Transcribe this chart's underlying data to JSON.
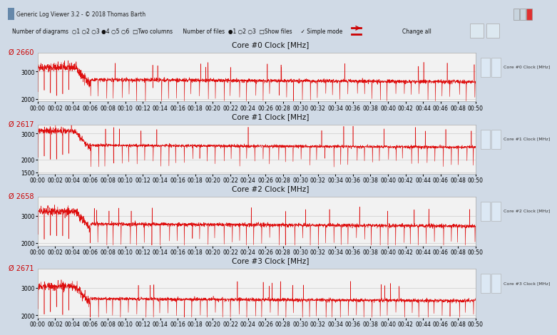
{
  "title_bar": "Generic Log Viewer 3.2 - © 2018 Thomas Barth",
  "cores": [
    {
      "title": "Core #0 Clock [MHz]",
      "avg": "2660",
      "ymin": 1900,
      "ymax": 3700,
      "yticks": [
        2000,
        3000
      ],
      "base": 2700,
      "noise": 55,
      "early_high": 3150,
      "drop_to": 1900,
      "label_right": "Core #0 Clock [MHz]"
    },
    {
      "title": "Core #1 Clock [MHz]",
      "avg": "2617",
      "ymin": 1450,
      "ymax": 3350,
      "yticks": [
        1500,
        2000,
        3000
      ],
      "base": 2550,
      "noise": 45,
      "early_high": 3100,
      "drop_to": 1500,
      "label_right": "Core #1 Clock [MHz]"
    },
    {
      "title": "Core #2 Clock [MHz]",
      "avg": "2658",
      "ymin": 1900,
      "ymax": 3700,
      "yticks": [
        2000,
        3000
      ],
      "base": 2700,
      "noise": 55,
      "early_high": 3150,
      "drop_to": 1900,
      "label_right": "Core #2 Clock [MHz]"
    },
    {
      "title": "Core #3 Clock [MHz]",
      "avg": "2671",
      "ymin": 1900,
      "ymax": 3700,
      "yticks": [
        2000,
        3000
      ],
      "base": 2600,
      "noise": 50,
      "early_high": 3050,
      "drop_to": 1900,
      "label_right": "Core #3 Clock [MHz]"
    }
  ],
  "bg_window": "#d0dae6",
  "bg_titlebar": "#bec8d4",
  "bg_toolbar": "#dce4ee",
  "bg_panel_outer": "#c8d4e0",
  "bg_panel_inner": "#f2f2f2",
  "line_color": "#dd0000",
  "grid_color": "#cccccc",
  "time_total_min": 50,
  "n_points": 3000,
  "tick_fontsize": 5.5,
  "title_fontsize": 7.5,
  "avg_fontsize": 7,
  "avg_color": "#cc0000"
}
